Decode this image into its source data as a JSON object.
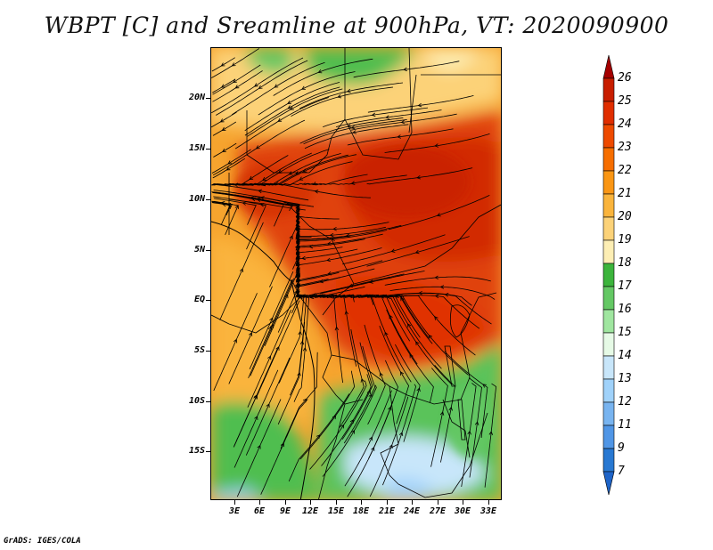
{
  "title": "WBPT [C] and Sreamline at 900hPa, VT: 2020090900",
  "credit": "GrADS: IGES/COLA",
  "map": {
    "lat_labels": [
      "20N",
      "15N",
      "10N",
      "5N",
      "EQ",
      "5S",
      "10S",
      "15S"
    ],
    "lon_labels": [
      "3E",
      "6E",
      "9E",
      "12E",
      "15E",
      "18E",
      "21E",
      "24E",
      "27E",
      "30E",
      "33E"
    ],
    "lon_range": [
      0,
      34.5
    ],
    "lat_range": [
      -20,
      24.5
    ]
  },
  "colorbar": {
    "labels": [
      "26",
      "25",
      "24",
      "23",
      "22",
      "21",
      "20",
      "19",
      "18",
      "17",
      "16",
      "15",
      "14",
      "13",
      "12",
      "11",
      "9",
      "7"
    ],
    "colors": [
      "#a50000",
      "#c81e00",
      "#e02e00",
      "#ee4a00",
      "#f66e00",
      "#fa9614",
      "#fab43c",
      "#fcd278",
      "#fdeeb4",
      "#3cb43c",
      "#64c864",
      "#a0e6a0",
      "#e6fae6",
      "#c8e6fa",
      "#a0d2fa",
      "#78b4f0",
      "#5096e6",
      "#2878d2",
      "#1e64c8"
    ]
  }
}
